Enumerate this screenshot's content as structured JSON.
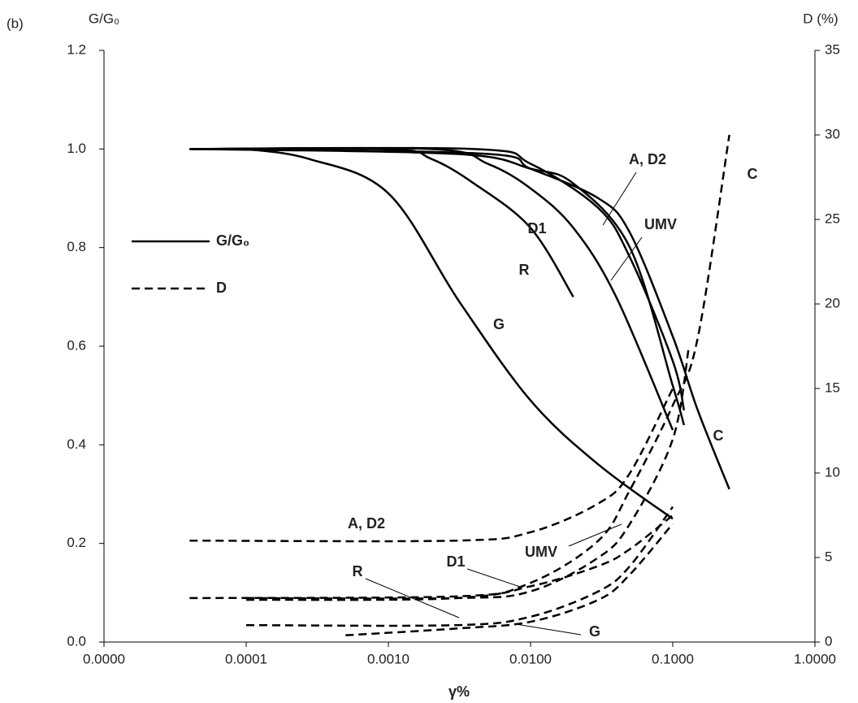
{
  "chart_data": {
    "type": "line",
    "panel_label": "(b)",
    "ylabel": "G/G₀",
    "y2label": "D (%)",
    "xlabel": "γ%",
    "xscale": "log",
    "xlim": [
      1e-05,
      1
    ],
    "xticks": [
      {
        "value": 1e-05,
        "label": "0.0000"
      },
      {
        "value": 0.0001,
        "label": "0.0001"
      },
      {
        "value": 0.001,
        "label": "0.0010"
      },
      {
        "value": 0.01,
        "label": "0.0100"
      },
      {
        "value": 0.1,
        "label": "0.1000"
      },
      {
        "value": 1,
        "label": "1.0000"
      }
    ],
    "ylim": [
      0,
      1.2
    ],
    "yticks": [
      {
        "value": 0,
        "label": "0.0"
      },
      0.2,
      0.4,
      0.6,
      0.8,
      {
        "value": 1,
        "label": "1.0"
      },
      1.2
    ],
    "y2lim": [
      0,
      35
    ],
    "y2ticks": [
      0,
      5,
      10,
      15,
      20,
      25,
      30,
      35
    ],
    "legend": [
      {
        "label": "G/G₀",
        "dash": false
      },
      {
        "label": "D",
        "dash": true
      }
    ],
    "series": [
      {
        "name": "G",
        "color": "#000",
        "dash": false,
        "x": [
          0.0001,
          0.000275,
          0.001,
          0.00316,
          0.01,
          0.03,
          0.1
        ],
        "values": [
          1.0,
          0.98,
          0.91,
          0.69,
          0.49,
          0.36,
          0.25
        ]
      },
      {
        "name": "R",
        "color": "#000",
        "dash": false,
        "x": [
          4e-05,
          0.001,
          0.002,
          0.004,
          0.01,
          0.02
        ],
        "values": [
          1.0,
          1.0,
          0.98,
          0.93,
          0.84,
          0.7
        ]
      },
      {
        "name": "D1",
        "color": "#000",
        "dash": false,
        "x": [
          4e-05,
          0.002,
          0.005,
          0.01,
          0.02,
          0.04,
          0.1
        ],
        "values": [
          1.0,
          1.0,
          0.97,
          0.92,
          0.84,
          0.7,
          0.43
        ]
      },
      {
        "name": "A, D2",
        "color": "#000",
        "dash": false,
        "x": [
          4e-05,
          0.004,
          0.01,
          0.03,
          0.05,
          0.1,
          0.12
        ],
        "values": [
          1.0,
          1.0,
          0.97,
          0.88,
          0.78,
          0.57,
          0.47
        ]
      },
      {
        "name": "UMV",
        "color": "#000",
        "dash": false,
        "x": [
          4e-05,
          0.003,
          0.01,
          0.02,
          0.05,
          0.1,
          0.12
        ],
        "values": [
          1.0,
          0.99,
          0.96,
          0.93,
          0.8,
          0.52,
          0.44
        ]
      },
      {
        "name": "C",
        "color": "#000",
        "dash": false,
        "x": [
          0.0001,
          0.005,
          0.01,
          0.03,
          0.05,
          0.1,
          0.15,
          0.25
        ],
        "values": [
          1.0,
          0.99,
          0.96,
          0.9,
          0.83,
          0.62,
          0.47,
          0.31
        ]
      },
      {
        "name": "A, D2",
        "color": "#000",
        "dash": true,
        "axis": "y2",
        "x": [
          4e-05,
          0.003,
          0.01,
          0.03,
          0.05,
          0.1
        ],
        "values": [
          6.0,
          6.0,
          6.5,
          8.2,
          10,
          15
        ]
      },
      {
        "name": "UMV",
        "color": "#000",
        "dash": true,
        "axis": "y2",
        "x": [
          0.0001,
          0.003,
          0.01,
          0.03,
          0.05,
          0.1,
          0.13
        ],
        "values": [
          2.6,
          2.6,
          3,
          5,
          7,
          12,
          17.5
        ]
      },
      {
        "name": "D1",
        "color": "#000",
        "dash": true,
        "axis": "y2",
        "x": [
          4e-05,
          0.003,
          0.01,
          0.03,
          0.05,
          0.1
        ],
        "values": [
          2.6,
          2.7,
          3.3,
          4.5,
          5.5,
          7.5
        ]
      },
      {
        "name": "R",
        "color": "#000",
        "dash": true,
        "axis": "y2",
        "x": [
          0.0001,
          0.003,
          0.01,
          0.03,
          0.05,
          0.1
        ],
        "values": [
          1.0,
          1.0,
          1.5,
          3,
          4.5,
          8
        ]
      },
      {
        "name": "G",
        "color": "#000",
        "dash": true,
        "axis": "y2",
        "x": [
          0.0005,
          0.003,
          0.01,
          0.03,
          0.05,
          0.1
        ],
        "values": [
          0.4,
          0.8,
          1.2,
          2.5,
          4,
          7
        ]
      },
      {
        "name": "C",
        "color": "#000",
        "dash": true,
        "axis": "y2",
        "x": [
          0.0001,
          0.003,
          0.01,
          0.03,
          0.05,
          0.1,
          0.15,
          0.25
        ],
        "values": [
          2.5,
          2.6,
          3.5,
          6,
          9,
          14,
          18,
          30
        ]
      }
    ]
  }
}
